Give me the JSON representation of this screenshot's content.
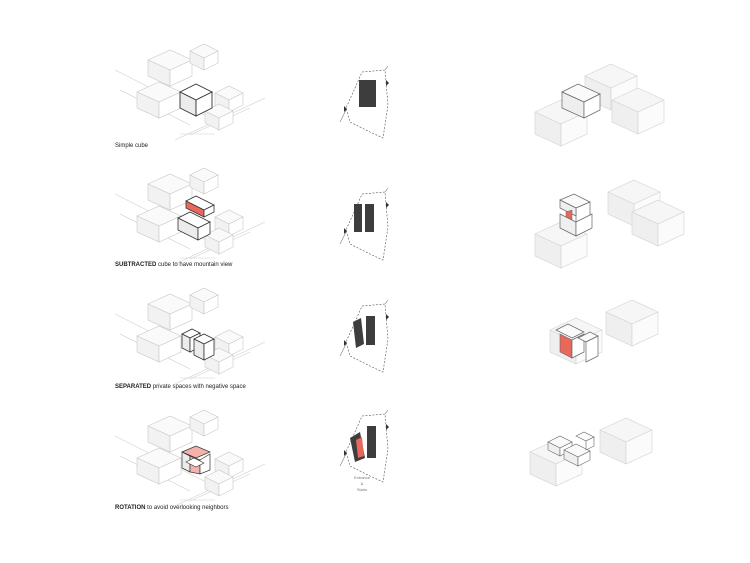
{
  "steps": [
    {
      "bold": "",
      "text": "Simple cube"
    },
    {
      "bold": "SUBTRACTED",
      "text": " cube to have mountain view"
    },
    {
      "bold": "SEPARATED",
      "text": " private spaces with negative space"
    },
    {
      "bold": "ROTATION",
      "text": " to avoid overlooking neighbors"
    }
  ],
  "plan_note": {
    "line1": "Entrance",
    "line2": "&",
    "line3": "Stairs"
  },
  "colors": {
    "accent": "#e8685c",
    "accent_light": "#f3b3aa",
    "mass": "#3d3d3d",
    "context_line": "#c8c8c8",
    "context_fill": "#f7f7f7"
  },
  "diagram": {
    "north_mark": "N-arrow"
  }
}
